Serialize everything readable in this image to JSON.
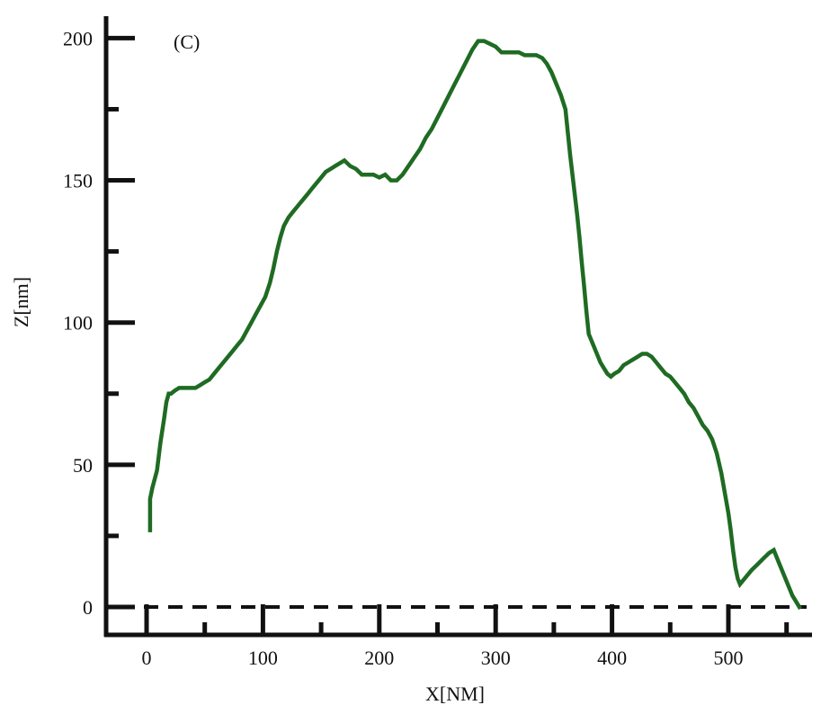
{
  "chart_data": {
    "type": "line",
    "panel_label": "(C)",
    "xlabel": "X[NM]",
    "ylabel": "Z[nm]",
    "xlim": [
      -35,
      575
    ],
    "ylim": [
      -10,
      205
    ],
    "x_ticks": [
      0,
      100,
      200,
      300,
      400,
      500
    ],
    "y_ticks": [
      0,
      50,
      100,
      150,
      200
    ],
    "x_minor_ticks": [
      50,
      150,
      250,
      350,
      450,
      550
    ],
    "y_minor_ticks": [
      25,
      75,
      125,
      175
    ],
    "grid": false,
    "baseline": {
      "y": 0,
      "style": "dashed"
    },
    "colors": {
      "series": "#1f6b23",
      "axis": "#111111"
    },
    "series": [
      {
        "x": [
          3,
          3,
          5,
          9,
          12,
          15,
          17,
          19,
          21,
          24,
          28,
          30,
          34,
          38,
          42,
          46,
          50,
          54,
          58,
          62,
          66,
          70,
          74,
          78,
          82,
          86,
          90,
          94,
          98,
          102,
          106,
          109,
          112,
          115,
          118,
          122,
          126,
          130,
          134,
          138,
          142,
          146,
          150,
          154,
          158,
          162,
          166,
          170,
          175,
          180,
          185,
          190,
          195,
          200,
          205,
          210,
          215,
          220,
          225,
          230,
          235,
          240,
          245,
          250,
          255,
          260,
          265,
          270,
          275,
          280,
          285,
          290,
          295,
          300,
          305,
          310,
          315,
          320,
          325,
          330,
          335,
          340,
          344,
          348,
          352,
          356,
          360,
          362,
          364,
          366,
          368,
          370,
          372,
          374,
          376,
          378,
          380,
          382,
          384,
          386,
          388,
          390,
          393,
          396,
          399,
          402,
          406,
          410,
          414,
          418,
          422,
          426,
          430,
          434,
          438,
          442,
          446,
          450,
          454,
          458,
          462,
          466,
          470,
          474,
          478,
          482,
          486,
          490,
          494,
          497,
          500,
          502,
          504,
          506,
          508,
          510,
          512,
          516,
          520,
          525,
          530,
          535,
          539,
          543,
          547,
          551,
          555,
          558,
          561
        ],
        "y": [
          27,
          38,
          42,
          48,
          58,
          66,
          72,
          75,
          75,
          76,
          77,
          77,
          77,
          77,
          77,
          78,
          79,
          80,
          82,
          84,
          86,
          88,
          90,
          92,
          94,
          97,
          100,
          103,
          106,
          109,
          114,
          119,
          125,
          130,
          134,
          137,
          139,
          141,
          143,
          145,
          147,
          149,
          151,
          153,
          154,
          155,
          156,
          157,
          155,
          154,
          152,
          152,
          152,
          151,
          152,
          150,
          150,
          152,
          155,
          158,
          161,
          165,
          168,
          172,
          176,
          180,
          184,
          188,
          192,
          196,
          199,
          199,
          198,
          197,
          195,
          195,
          195,
          195,
          194,
          194,
          194,
          193,
          191,
          188,
          184,
          180,
          175,
          167,
          159,
          152,
          145,
          138,
          130,
          121,
          113,
          104,
          96,
          94,
          92,
          90,
          88,
          86,
          84,
          82,
          81,
          82,
          83,
          85,
          86,
          87,
          88,
          89,
          89,
          88,
          86,
          84,
          82,
          81,
          79,
          77,
          75,
          72,
          70,
          67,
          64,
          62,
          59,
          54,
          47,
          40,
          33,
          27,
          20,
          14,
          10,
          8,
          9,
          11,
          13,
          15,
          17,
          19,
          20,
          16,
          12,
          8,
          4,
          2,
          0
        ]
      }
    ]
  }
}
